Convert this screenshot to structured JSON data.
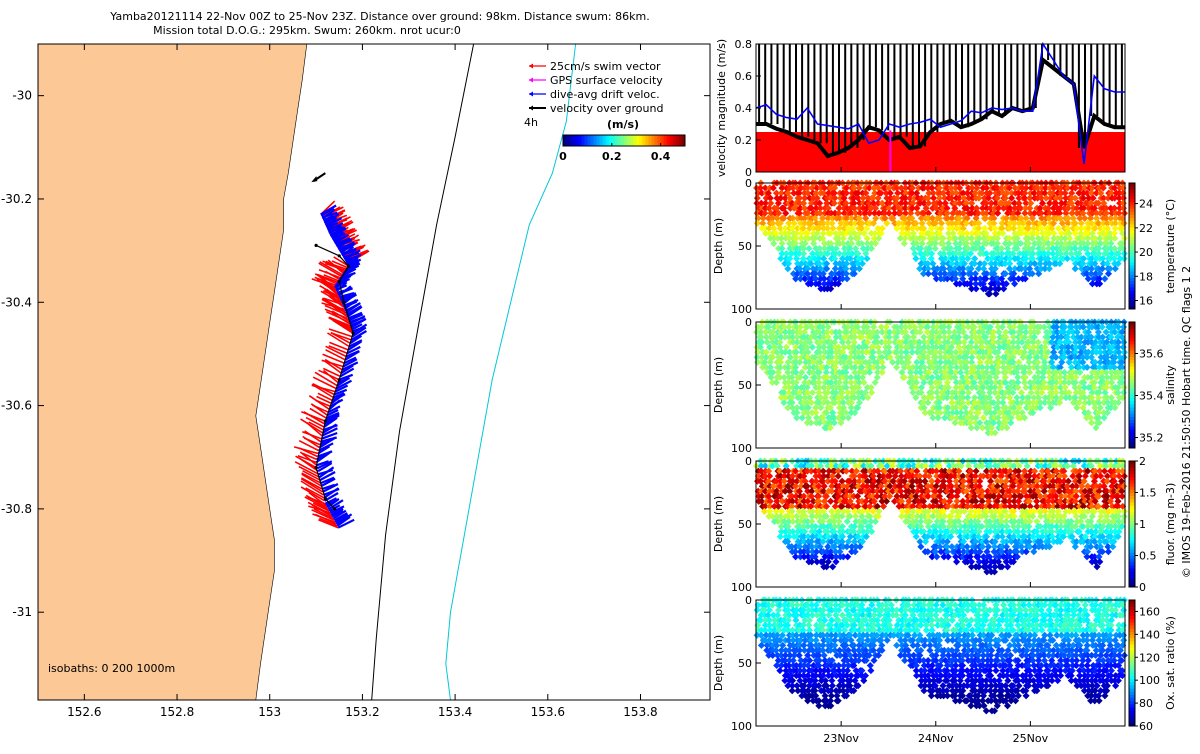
{
  "title": {
    "line1": "Yamba20121114 22-Nov 00Z to 25-Nov 23Z. Distance over ground: 98km. Distance swum: 86km.",
    "line2": "Mission total D.O.G.: 295km. Swum: 260km. nrot ucur:0"
  },
  "colors": {
    "land": "#fbc896",
    "swim_vector": "#ff0000",
    "gps_velocity": "#ff00ff",
    "drift_velocity": "#0000ff",
    "ground_velocity": "#000000",
    "isobath_200": "#000000",
    "isobath_1000": "#00c8d8"
  },
  "map": {
    "xticks": [
      "152.6",
      "152.8",
      "153",
      "153.2",
      "153.4",
      "153.6",
      "153.8"
    ],
    "xtick_values": [
      152.6,
      152.8,
      153.0,
      153.2,
      153.4,
      153.6,
      153.8
    ],
    "yticks": [
      "-30",
      "-30.2",
      "-30.4",
      "-30.6",
      "-30.8",
      "-31"
    ],
    "ytick_values": [
      -30.0,
      -30.2,
      -30.4,
      -30.6,
      -30.8,
      -31.0
    ],
    "xlim": [
      152.5,
      153.95
    ],
    "ylim": [
      -31.17,
      -29.9
    ],
    "legend": {
      "swim": "25cm/s swim vector",
      "gps": "GPS surface velocity",
      "drift": "dive-avg drift veloc.",
      "ground": "velocity over ground"
    },
    "time_label": "4h",
    "colorbar": {
      "title": "(m/s)",
      "ticks": [
        "0",
        "0.2",
        "0.4"
      ],
      "tick_values": [
        0,
        0.2,
        0.4
      ],
      "range": [
        0,
        0.5
      ],
      "colormap": "jet"
    },
    "isobaths_label": "isobaths: 0   200  1000m",
    "track": [
      [
        153.1,
        -30.29
      ],
      [
        153.15,
        -30.31
      ],
      [
        153.17,
        -30.33
      ],
      [
        153.15,
        -30.36
      ],
      [
        153.16,
        -30.4
      ],
      [
        153.18,
        -30.46
      ],
      [
        153.15,
        -30.55
      ],
      [
        153.12,
        -30.63
      ],
      [
        153.1,
        -30.72
      ],
      [
        153.12,
        -30.78
      ],
      [
        153.14,
        -30.8
      ]
    ],
    "drift_track": [
      [
        153.11,
        -30.23
      ],
      [
        153.13,
        -30.27
      ],
      [
        153.15,
        -30.3
      ],
      [
        153.17,
        -30.33
      ],
      [
        153.14,
        -30.37
      ],
      [
        153.16,
        -30.41
      ],
      [
        153.18,
        -30.46
      ],
      [
        153.15,
        -30.55
      ],
      [
        153.12,
        -30.63
      ],
      [
        153.1,
        -30.71
      ],
      [
        153.12,
        -30.79
      ],
      [
        153.15,
        -30.84
      ]
    ]
  },
  "velocity_panel": {
    "ylabel": "velocity magnitude (m/s)",
    "yticks": [
      "0",
      "0.2",
      "0.4",
      "0.6",
      "0.8"
    ],
    "ytick_values": [
      0,
      0.2,
      0.4,
      0.6,
      0.8
    ],
    "ylim": [
      0,
      0.8
    ],
    "swim_speed": 0.25,
    "drift_series": [
      0.4,
      0.42,
      0.36,
      0.34,
      0.33,
      0.4,
      0.3,
      0.29,
      0.28,
      0.27,
      0.3,
      0.18,
      0.2,
      0.3,
      0.28,
      0.3,
      0.31,
      0.33,
      0.28,
      0.3,
      0.32,
      0.38,
      0.37,
      0.4,
      0.39,
      0.4,
      0.38,
      0.38,
      0.8,
      0.7,
      0.6,
      0.55,
      0.05,
      0.6,
      0.52,
      0.5,
      0.5
    ],
    "ground_series": [
      0.3,
      0.3,
      0.27,
      0.25,
      0.22,
      0.2,
      0.18,
      0.1,
      0.12,
      0.15,
      0.2,
      0.28,
      0.26,
      0.2,
      0.22,
      0.15,
      0.16,
      0.25,
      0.3,
      0.32,
      0.28,
      0.3,
      0.33,
      0.38,
      0.35,
      0.4,
      0.38,
      0.4,
      0.7,
      0.65,
      0.6,
      0.55,
      0.15,
      0.35,
      0.3,
      0.28,
      0.28
    ]
  },
  "profile_panels": [
    {
      "id": "temperature",
      "ylabel": "Depth (m)",
      "cblabel": "temperature (°C)",
      "cbticks": [
        "16",
        "18",
        "20",
        "22",
        "24"
      ],
      "cbtick_values": [
        16,
        18,
        20,
        22,
        24
      ],
      "cbrange": [
        15.3,
        25.7
      ]
    },
    {
      "id": "salinity",
      "ylabel": "Depth (m)",
      "cblabel": "salinity",
      "cbticks": [
        "35.2",
        "35.4",
        "35.6"
      ],
      "cbtick_values": [
        35.2,
        35.4,
        35.6
      ],
      "cbrange": [
        35.15,
        35.75
      ]
    },
    {
      "id": "fluor",
      "ylabel": "Depth (m)",
      "cblabel": "fluor. (mg m-3)",
      "cbticks": [
        "0",
        "0.5",
        "1",
        "1.5",
        "2"
      ],
      "cbtick_values": [
        0,
        0.5,
        1,
        1.5,
        2
      ],
      "cbrange": [
        0,
        2
      ]
    },
    {
      "id": "oxygen",
      "ylabel": "Depth (m)",
      "cblabel": "Ox. sat. ratio (%)",
      "cbticks": [
        "60",
        "80",
        "100",
        "120",
        "140",
        "160"
      ],
      "cbtick_values": [
        60,
        80,
        100,
        120,
        140,
        160
      ],
      "cbrange": [
        60,
        170
      ]
    }
  ],
  "depth_axis": {
    "ticks": [
      "0",
      "50",
      "100"
    ],
    "tick_values": [
      0,
      50,
      100
    ],
    "range": [
      0,
      100
    ]
  },
  "time_axis": {
    "ticks": [
      "23Nov",
      "24Nov",
      "25Nov"
    ],
    "tick_values": [
      1,
      2,
      3
    ],
    "range": [
      0.1,
      4.0
    ]
  },
  "side_note": "© IMOS 19-Feb-2016 21:50:50 Hobart time. QC flags 1  2",
  "chart_data": [
    {
      "type": "scatter",
      "title": "Yamba20121114 22-Nov 00Z to 25-Nov 23Z. Distance over ground: 98km. Distance swum: 86km.",
      "xlabel": "",
      "ylabel": "",
      "xlim": [
        152.5,
        153.95
      ],
      "ylim": [
        -31.17,
        -29.9
      ],
      "series": [
        {
          "name": "velocity over ground",
          "x": [
            153.1,
            153.15,
            153.17,
            153.15,
            153.16,
            153.18,
            153.15,
            153.12,
            153.1,
            153.12,
            153.14
          ],
          "y": [
            -30.29,
            -30.31,
            -30.33,
            -30.36,
            -30.4,
            -30.46,
            -30.55,
            -30.63,
            -30.72,
            -30.78,
            -30.8
          ]
        }
      ]
    },
    {
      "type": "line",
      "ylabel": "velocity magnitude (m/s)",
      "ylim": [
        0,
        0.8
      ],
      "series": [
        {
          "name": "dive-avg drift veloc.",
          "values": [
            0.4,
            0.42,
            0.36,
            0.34,
            0.33,
            0.4,
            0.3,
            0.29,
            0.28,
            0.27,
            0.3,
            0.18,
            0.2,
            0.3,
            0.28,
            0.3,
            0.31,
            0.33,
            0.28,
            0.3,
            0.32,
            0.38,
            0.37,
            0.4,
            0.39,
            0.4,
            0.38,
            0.38,
            0.8,
            0.7,
            0.6,
            0.55,
            0.05,
            0.6,
            0.52,
            0.5,
            0.5
          ]
        },
        {
          "name": "25cm/s swim vector",
          "values": [
            0.25
          ]
        }
      ]
    },
    {
      "type": "heatmap",
      "ylabel": "Depth (m)",
      "colorbar_label": "temperature (°C)",
      "range": [
        15.3,
        25.7
      ],
      "x_ticks": [
        "23Nov",
        "24Nov",
        "25Nov"
      ]
    },
    {
      "type": "heatmap",
      "ylabel": "Depth (m)",
      "colorbar_label": "salinity",
      "range": [
        35.15,
        35.75
      ],
      "x_ticks": [
        "23Nov",
        "24Nov",
        "25Nov"
      ]
    },
    {
      "type": "heatmap",
      "ylabel": "Depth (m)",
      "colorbar_label": "fluor. (mg m-3)",
      "range": [
        0,
        2
      ],
      "x_ticks": [
        "23Nov",
        "24Nov",
        "25Nov"
      ]
    },
    {
      "type": "heatmap",
      "ylabel": "Depth (m)",
      "colorbar_label": "Ox. sat. ratio (%)",
      "range": [
        60,
        170
      ],
      "x_ticks": [
        "23Nov",
        "24Nov",
        "25Nov"
      ]
    }
  ]
}
